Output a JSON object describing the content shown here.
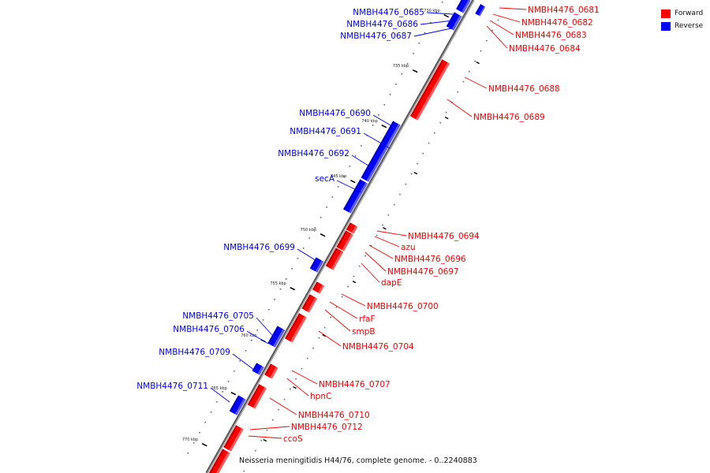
{
  "colors": {
    "forward": "#ff0000",
    "reverse": "#0000ff",
    "backbone": "#8a8a8a"
  },
  "legend": {
    "forward": "Forward",
    "reverse": "Reverse"
  },
  "caption": "Neisseria meningitidis H44/76, complete genome. - 0..2240883",
  "ticks": [
    {
      "label": "730 kbp"
    },
    {
      "label": "735 kbp"
    },
    {
      "label": "740 kbp"
    },
    {
      "label": "745 kbp"
    },
    {
      "label": "750 kbp"
    },
    {
      "label": "755 kbp"
    },
    {
      "label": "760 kbp"
    },
    {
      "label": "765 kbp"
    },
    {
      "label": "770 kbp"
    }
  ],
  "genes": [
    {
      "label": "NMBH4476_0681",
      "strand": "forward-top"
    },
    {
      "label": "NMBH4476_0682",
      "strand": "forward-top"
    },
    {
      "label": "NMBH4476_0683",
      "strand": "forward-top"
    },
    {
      "label": "NMBH4476_0684",
      "strand": "forward-top"
    },
    {
      "label": "NMBH4476_0685",
      "strand": "reverse"
    },
    {
      "label": "NMBH4476_0686",
      "strand": "reverse"
    },
    {
      "label": "NMBH4476_0687",
      "strand": "reverse"
    },
    {
      "label": "NMBH4476_0688",
      "strand": "forward"
    },
    {
      "label": "NMBH4476_0689",
      "strand": "forward"
    },
    {
      "label": "NMBH4476_0690",
      "strand": "reverse"
    },
    {
      "label": "NMBH4476_0691",
      "strand": "reverse"
    },
    {
      "label": "NMBH4476_0692",
      "strand": "reverse"
    },
    {
      "label": "secA",
      "strand": "reverse"
    },
    {
      "label": "NMBH4476_0694",
      "strand": "forward"
    },
    {
      "label": "azu",
      "strand": "forward"
    },
    {
      "label": "NMBH4476_0696",
      "strand": "forward"
    },
    {
      "label": "NMBH4476_0697",
      "strand": "forward"
    },
    {
      "label": "dapE",
      "strand": "forward"
    },
    {
      "label": "NMBH4476_0699",
      "strand": "reverse"
    },
    {
      "label": "NMBH4476_0700",
      "strand": "forward"
    },
    {
      "label": "rfaF",
      "strand": "forward"
    },
    {
      "label": "smpB",
      "strand": "forward"
    },
    {
      "label": "NMBH4476_0704",
      "strand": "forward"
    },
    {
      "label": "NMBH4476_0705",
      "strand": "reverse"
    },
    {
      "label": "NMBH4476_0706",
      "strand": "reverse"
    },
    {
      "label": "NMBH4476_0707",
      "strand": "forward"
    },
    {
      "label": "hpnC",
      "strand": "forward"
    },
    {
      "label": "NMBH4476_0709",
      "strand": "reverse"
    },
    {
      "label": "NMBH4476_0710",
      "strand": "forward"
    },
    {
      "label": "NMBH4476_0711",
      "strand": "reverse"
    },
    {
      "label": "NMBH4476_0712",
      "strand": "forward"
    },
    {
      "label": "ccoS",
      "strand": "forward"
    }
  ]
}
